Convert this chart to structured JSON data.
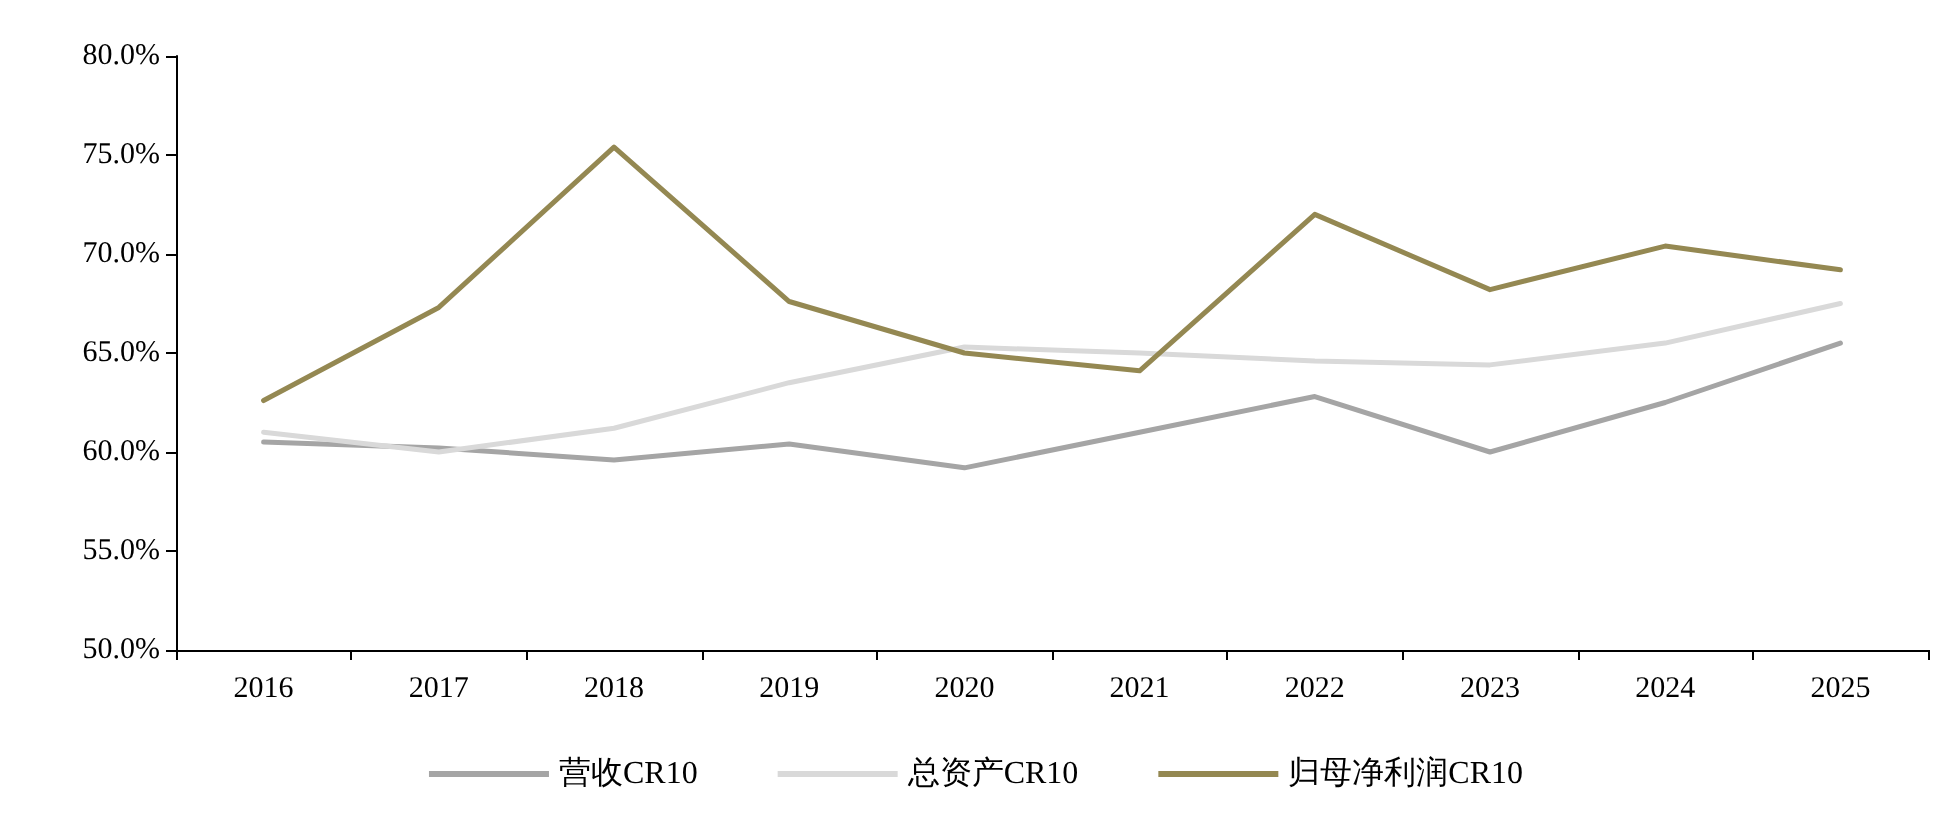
{
  "chart_data": {
    "type": "line",
    "categories": [
      "2016",
      "2017",
      "2018",
      "2019",
      "2020",
      "2021",
      "2022",
      "2023",
      "2024",
      "2025"
    ],
    "series": [
      {
        "name": "营收CR10",
        "color": "#a5a5a5",
        "values": [
          60.5,
          60.2,
          59.6,
          60.4,
          59.2,
          61.0,
          62.8,
          60.0,
          62.5,
          65.5
        ]
      },
      {
        "name": "总资产CR10",
        "color": "#d9d9d9",
        "values": [
          61.0,
          60.0,
          61.2,
          63.5,
          65.3,
          65.0,
          64.6,
          64.4,
          65.5,
          67.5
        ]
      },
      {
        "name": "归母净利润CR10",
        "color": "#948852",
        "values": [
          62.6,
          67.3,
          75.4,
          67.6,
          65.0,
          64.1,
          72.0,
          68.2,
          70.4,
          69.2
        ]
      }
    ],
    "ylim": [
      50,
      80
    ],
    "yticks": [
      {
        "value": 50,
        "label": "50.0%"
      },
      {
        "value": 55,
        "label": "55.0%"
      },
      {
        "value": 60,
        "label": "60.0%"
      },
      {
        "value": 65,
        "label": "65.0%"
      },
      {
        "value": 70,
        "label": "70.0%"
      },
      {
        "value": 75,
        "label": "75.0%"
      },
      {
        "value": 80,
        "label": "80.0%"
      }
    ],
    "grid": false,
    "legend": "bottom",
    "marker": "none",
    "line_style": "solid"
  }
}
